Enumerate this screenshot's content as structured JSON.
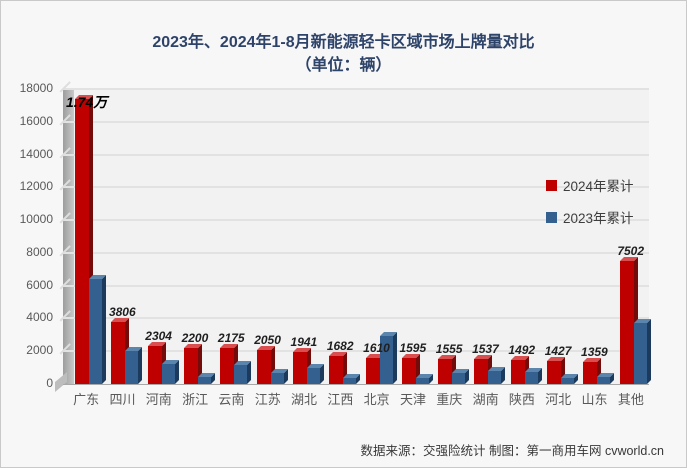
{
  "chart_data": {
    "type": "bar",
    "style": "3d-grouped-column",
    "title": "2023年、2024年1-8月新能源轻卡区域市场上牌量对比",
    "subtitle": "（单位：辆）",
    "categories": [
      "广东",
      "四川",
      "河南",
      "浙江",
      "云南",
      "江苏",
      "湖北",
      "江西",
      "北京",
      "天津",
      "重庆",
      "湖南",
      "陕西",
      "河北",
      "山东",
      "其他"
    ],
    "series": [
      {
        "name": "2024年累计",
        "color": "#bf0000",
        "values": [
          17400,
          3806,
          2304,
          2200,
          2175,
          2050,
          1941,
          1682,
          1610,
          1595,
          1555,
          1537,
          1492,
          1427,
          1359,
          7502
        ],
        "labels": [
          "1.74万",
          "3806",
          "2304",
          "2200",
          "2175",
          "2050",
          "1941",
          "1682",
          "1610",
          "1595",
          "1555",
          "1537",
          "1492",
          "1427",
          "1359",
          "7502"
        ]
      },
      {
        "name": "2023年累计",
        "color": "#34608f",
        "values": [
          6400,
          2000,
          1250,
          450,
          1150,
          700,
          1000,
          350,
          2900,
          380,
          680,
          820,
          720,
          380,
          450,
          3720
        ],
        "labels": []
      }
    ],
    "ylim": [
      0,
      18000
    ],
    "ytick_step": 2000,
    "yticks": [
      "18000",
      "16000",
      "14000",
      "12000",
      "10000",
      "8000",
      "6000",
      "4000",
      "2000",
      "0"
    ],
    "grid": true,
    "legend_position": "right-middle",
    "note": "2023 series values estimated from bar heights; only 2024 series carries data labels"
  },
  "colors": {
    "accent_red": "#bf0000",
    "accent_blue": "#34608f",
    "title_text": "#2e4369",
    "plot_background": "#f2f2f2",
    "gridline": "#e2e2e2",
    "axis_text": "#595959"
  },
  "footer": {
    "text": "数据来源：交强险统计 制图：第一商用车网 cvworld.cn"
  }
}
